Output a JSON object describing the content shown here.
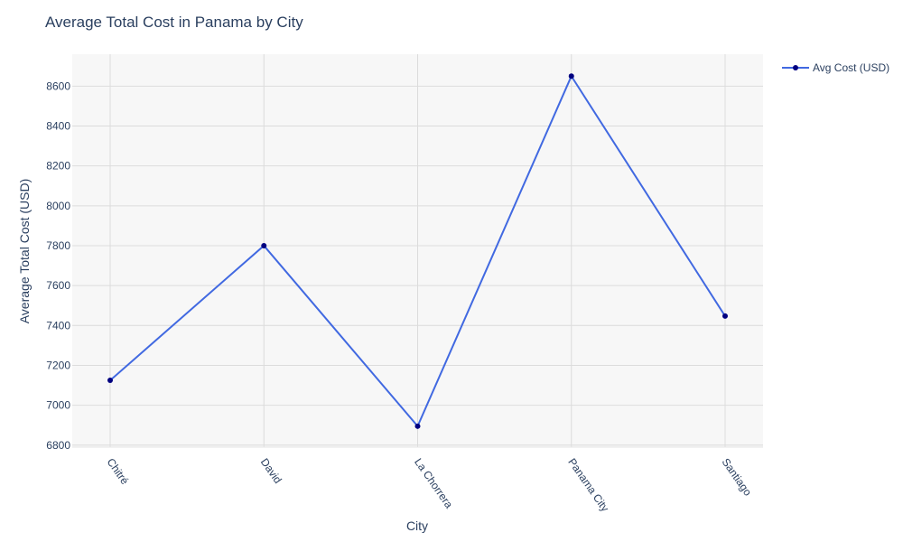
{
  "chart_data": {
    "type": "line",
    "title": "Average Total Cost in Panama by City",
    "xlabel": "City",
    "ylabel": "Average Total Cost (USD)",
    "categories": [
      "Chitré",
      "David",
      "La Chorrera",
      "Panama City",
      "Santiago"
    ],
    "series": [
      {
        "name": "Avg Cost (USD)",
        "values": [
          7125,
          7800,
          6895,
          8650,
          7447
        ],
        "line_color": "#4169e1",
        "marker_color": "#000080"
      }
    ],
    "ylim": [
      6790,
      8760
    ],
    "yticks": [
      6800,
      7000,
      7200,
      7400,
      7600,
      7800,
      8000,
      8200,
      8400,
      8600
    ],
    "grid": true,
    "legend_position": "top-right",
    "plot_background": "#f7f7f7"
  }
}
